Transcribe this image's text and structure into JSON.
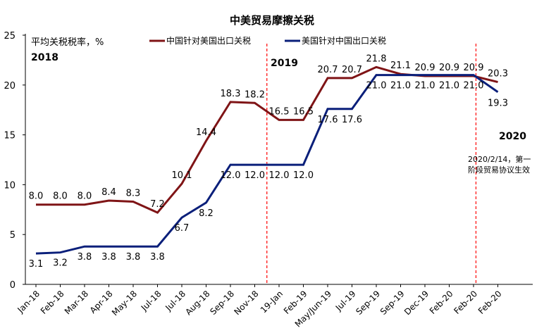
{
  "chart_data": {
    "type": "line",
    "title": "中美贸易摩擦关税",
    "ylabel": "平均关税税率，%",
    "xlabel": "",
    "ylim": [
      0,
      25
    ],
    "yticks": [
      0,
      5,
      10,
      15,
      20,
      25
    ],
    "categories": [
      "Jan-18",
      "Feb-18",
      "Mar-18",
      "Apr-18",
      "May-18",
      "Jul-18",
      "Jul-18",
      "Aug-18",
      "Sep-18",
      "Nov-18",
      "19-Jan",
      "Feb-19",
      "May/Jun-19",
      "Jul-19",
      "Sep-19",
      "Sep-19",
      "Dec-19",
      "Feb-20",
      "Feb-20",
      "Feb-20"
    ],
    "series": [
      {
        "name": "中国针对美国出口关税",
        "color": "#7f1416",
        "values": [
          8.0,
          8.0,
          8.0,
          8.4,
          8.3,
          7.2,
          10.1,
          14.4,
          18.3,
          18.2,
          16.5,
          16.5,
          20.7,
          20.7,
          21.8,
          21.1,
          20.9,
          20.9,
          20.9,
          20.3
        ],
        "labels": [
          "8.0",
          "8.0",
          "8.0",
          "8.4",
          "8.3",
          "7.2",
          "10.1",
          "14.4",
          "18.3",
          "18.2",
          "16.5",
          "16.5",
          "20.7",
          "20.7",
          "21.8",
          "21.1",
          "20.9",
          "20.9",
          "20.9",
          "20.3"
        ]
      },
      {
        "name": "美国针对中国出口关税",
        "color": "#0a1f7a",
        "values": [
          3.1,
          3.2,
          3.8,
          3.8,
          3.8,
          3.8,
          6.7,
          8.2,
          12.0,
          12.0,
          12.0,
          12.0,
          17.6,
          17.6,
          21.0,
          21.0,
          21.0,
          21.0,
          21.0,
          19.3
        ],
        "labels": [
          "3.1",
          "3.2",
          "3.8",
          "3.8",
          "3.8",
          "3.8",
          "6.7",
          "8.2",
          "12.0",
          "12.0",
          "12.0",
          "12.0",
          "17.6",
          "17.6",
          "21.0",
          "21.0",
          "21.0",
          "21.0",
          "21.0",
          "19.3"
        ]
      }
    ],
    "year_markers": [
      "2018",
      "2019",
      "2020"
    ],
    "annotation": "2020/2/14，第一阶段贸易协议生效",
    "legend_position": "top",
    "grid": false
  },
  "colors": {
    "divider": "#ff0000",
    "axis": "#000000"
  }
}
